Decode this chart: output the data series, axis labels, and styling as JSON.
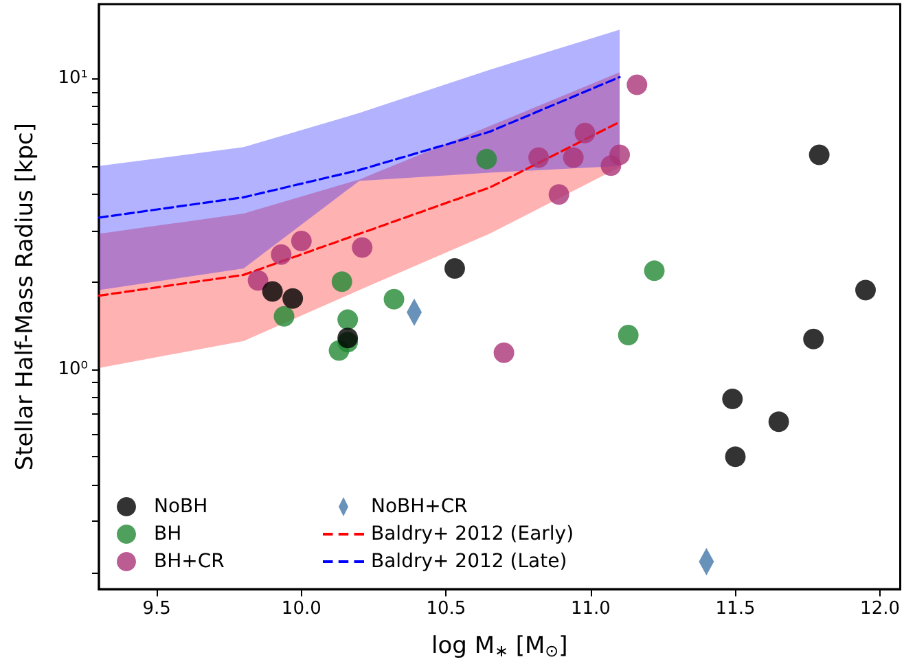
{
  "chart_data": {
    "type": "scatter",
    "xlabel": "log M$_{∗}$ [M$_{⊙}$]",
    "ylabel": "Stellar Half-Mass Radius [kpc]",
    "log": "y",
    "xlim": [
      9.3,
      12.07
    ],
    "ylim": [
      0.175,
      18
    ],
    "xticks": [
      {
        "value": 9.5,
        "label": "9.5"
      },
      {
        "value": 10,
        "label": "10.0"
      },
      {
        "value": 10.5,
        "label": "10.5"
      },
      {
        "value": 11,
        "label": "11.0"
      },
      {
        "value": 11.5,
        "label": "11.5"
      },
      {
        "value": 12,
        "label": "12.0"
      }
    ],
    "yticks": [
      {
        "value": 0.2,
        "label": null
      },
      {
        "value": 0.3,
        "label": null
      },
      {
        "value": 0.4,
        "label": null
      },
      {
        "value": 0.5,
        "label": null
      },
      {
        "value": 0.6,
        "label": null
      },
      {
        "value": 0.7,
        "label": null
      },
      {
        "value": 0.8,
        "label": null
      },
      {
        "value": 0.9,
        "label": null
      },
      {
        "value": 1,
        "label": "10⁰"
      },
      {
        "value": 2,
        "label": null
      },
      {
        "value": 3,
        "label": null
      },
      {
        "value": 4,
        "label": null
      },
      {
        "value": 5,
        "label": null
      },
      {
        "value": 6,
        "label": null
      },
      {
        "value": 7,
        "label": null
      },
      {
        "value": 8,
        "label": null
      },
      {
        "value": 9,
        "label": null
      },
      {
        "value": 10,
        "label": "10¹"
      }
    ],
    "grid": false,
    "legend": "bottom left",
    "series": [
      {
        "name": "NoBH",
        "marker": "circle",
        "color": "#000000",
        "x": [
          9.9,
          9.97,
          10.16,
          10.53,
          11.49,
          11.5,
          11.65,
          11.79,
          11.77,
          11.95
        ],
        "values": [
          1.85,
          1.75,
          1.28,
          2.22,
          0.79,
          0.5,
          0.66,
          5.46,
          1.27,
          1.87
        ]
      },
      {
        "name": "BH",
        "marker": "circle",
        "color": "#228833",
        "x": [
          10.64,
          9.94,
          10.14,
          10.16,
          10.13,
          10.16,
          10.32,
          11.22,
          11.13
        ],
        "values": [
          5.28,
          1.52,
          2.0,
          1.48,
          1.16,
          1.24,
          1.74,
          2.18,
          1.31
        ]
      },
      {
        "name": "BH+CR",
        "marker": "circle",
        "color": "#aa3377",
        "x": [
          9.85,
          9.93,
          10.0,
          10.21,
          10.7,
          11.16,
          10.98,
          10.82,
          10.94,
          11.1,
          11.07,
          10.89
        ],
        "values": [
          2.02,
          2.48,
          2.76,
          2.62,
          1.14,
          9.5,
          6.49,
          5.34,
          5.34,
          5.46,
          5.01,
          3.99
        ]
      },
      {
        "name": "NoBH+CR",
        "marker": "diamond",
        "color": "#4477aa",
        "x": [
          10.39,
          11.4
        ],
        "values": [
          1.57,
          0.218
        ]
      },
      {
        "name": "Baldry+ 2012 (Early)",
        "type": "line",
        "marker": "none",
        "line_style": "dashed",
        "color": "#ff0000",
        "x": [
          9.3,
          9.8,
          10.2,
          10.65,
          11.1
        ],
        "values": [
          1.79,
          2.11,
          2.92,
          4.21,
          7.08
        ],
        "lower": [
          1.01,
          1.25,
          1.87,
          2.92,
          4.95
        ],
        "upper": [
          2.92,
          3.43,
          4.49,
          6.85,
          10.5
        ]
      },
      {
        "name": "Baldry+ 2012 (Late)",
        "type": "line",
        "marker": "none",
        "line_style": "dashed",
        "color": "#0000ff",
        "x": [
          9.3,
          9.8,
          10.2,
          10.65,
          11.1
        ],
        "values": [
          3.32,
          3.9,
          4.84,
          6.55,
          10.1
        ],
        "lower": [
          1.87,
          2.22,
          4.44,
          4.74,
          5.0
        ],
        "upper": [
          5.0,
          5.8,
          7.6,
          10.7,
          14.7
        ]
      }
    ]
  }
}
